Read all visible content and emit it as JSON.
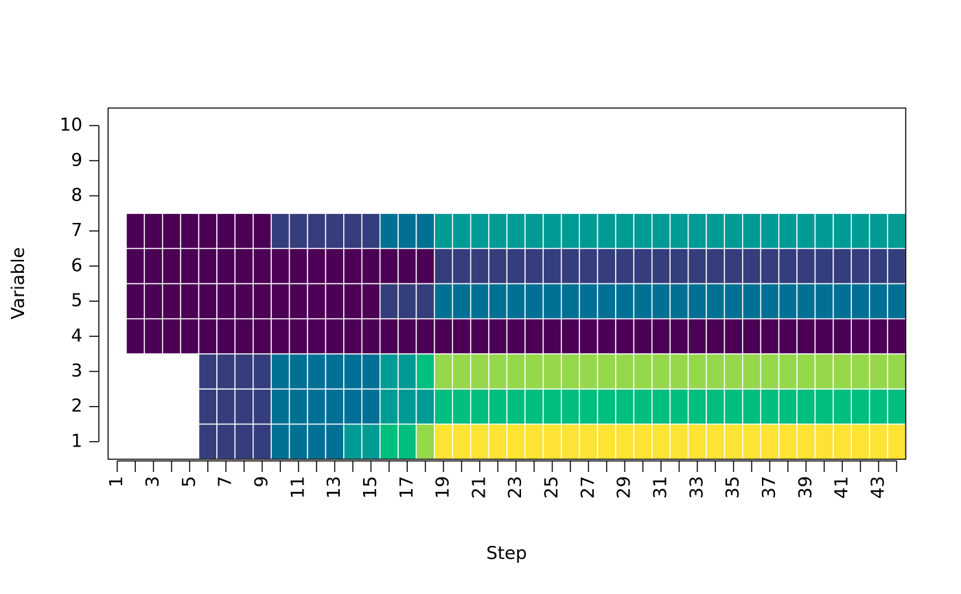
{
  "chart_data": {
    "type": "heatmap",
    "xlabel": "Step",
    "ylabel": "Variable",
    "x": [
      1,
      2,
      3,
      4,
      5,
      6,
      7,
      8,
      9,
      10,
      11,
      12,
      13,
      14,
      15,
      16,
      17,
      18,
      19,
      20,
      21,
      22,
      23,
      24,
      25,
      26,
      27,
      28,
      29,
      30,
      31,
      32,
      33,
      34,
      35,
      36,
      37,
      38,
      39,
      40,
      41,
      42,
      43,
      44
    ],
    "y": [
      1,
      2,
      3,
      4,
      5,
      6,
      7
    ],
    "palette": [
      "#4B0055",
      "#353E7C",
      "#007094",
      "#009B95",
      "#00BE7D",
      "#96D84B",
      "#FDE333"
    ],
    "values": [
      [
        null,
        null,
        null,
        null,
        null,
        2,
        2,
        2,
        2,
        3,
        3,
        3,
        3,
        4,
        4,
        5,
        5,
        6,
        7,
        7,
        7,
        7,
        7,
        7,
        7,
        7,
        7,
        7,
        7,
        7,
        7,
        7,
        7,
        7,
        7,
        7,
        7,
        7,
        7,
        7,
        7,
        7,
        7,
        7
      ],
      [
        null,
        null,
        null,
        null,
        null,
        2,
        2,
        2,
        2,
        3,
        3,
        3,
        3,
        3,
        3,
        4,
        4,
        4,
        5,
        5,
        5,
        5,
        5,
        5,
        5,
        5,
        5,
        5,
        5,
        5,
        5,
        5,
        5,
        5,
        5,
        5,
        5,
        5,
        5,
        5,
        5,
        5,
        5,
        5
      ],
      [
        null,
        null,
        null,
        null,
        null,
        2,
        2,
        2,
        2,
        3,
        3,
        3,
        3,
        3,
        3,
        4,
        4,
        5,
        6,
        6,
        6,
        6,
        6,
        6,
        6,
        6,
        6,
        6,
        6,
        6,
        6,
        6,
        6,
        6,
        6,
        6,
        6,
        6,
        6,
        6,
        6,
        6,
        6,
        6
      ],
      [
        null,
        1,
        1,
        1,
        1,
        1,
        1,
        1,
        1,
        1,
        1,
        1,
        1,
        1,
        1,
        1,
        1,
        1,
        1,
        1,
        1,
        1,
        1,
        1,
        1,
        1,
        1,
        1,
        1,
        1,
        1,
        1,
        1,
        1,
        1,
        1,
        1,
        1,
        1,
        1,
        1,
        1,
        1,
        1
      ],
      [
        null,
        1,
        1,
        1,
        1,
        1,
        1,
        1,
        1,
        1,
        1,
        1,
        1,
        1,
        1,
        2,
        2,
        2,
        3,
        3,
        3,
        3,
        3,
        3,
        3,
        3,
        3,
        3,
        3,
        3,
        3,
        3,
        3,
        3,
        3,
        3,
        3,
        3,
        3,
        3,
        3,
        3,
        3,
        3
      ],
      [
        null,
        1,
        1,
        1,
        1,
        1,
        1,
        1,
        1,
        1,
        1,
        1,
        1,
        1,
        1,
        1,
        1,
        1,
        2,
        2,
        2,
        2,
        2,
        2,
        2,
        2,
        2,
        2,
        2,
        2,
        2,
        2,
        2,
        2,
        2,
        2,
        2,
        2,
        2,
        2,
        2,
        2,
        2,
        2
      ],
      [
        null,
        1,
        1,
        1,
        1,
        1,
        1,
        1,
        1,
        2,
        2,
        2,
        2,
        2,
        2,
        3,
        3,
        3,
        4,
        4,
        4,
        4,
        4,
        4,
        4,
        4,
        4,
        4,
        4,
        4,
        4,
        4,
        4,
        4,
        4,
        4,
        4,
        4,
        4,
        4,
        4,
        4,
        4,
        4
      ]
    ],
    "xlim": [
      0.5,
      44.5
    ],
    "ylim": [
      0.5,
      10.5
    ],
    "xticks": [
      1,
      3,
      5,
      7,
      9,
      11,
      13,
      15,
      17,
      19,
      21,
      23,
      25,
      27,
      29,
      31,
      33,
      35,
      37,
      39,
      41,
      43
    ],
    "yticks": [
      1,
      2,
      3,
      4,
      5,
      6,
      7,
      8,
      9,
      10
    ]
  }
}
